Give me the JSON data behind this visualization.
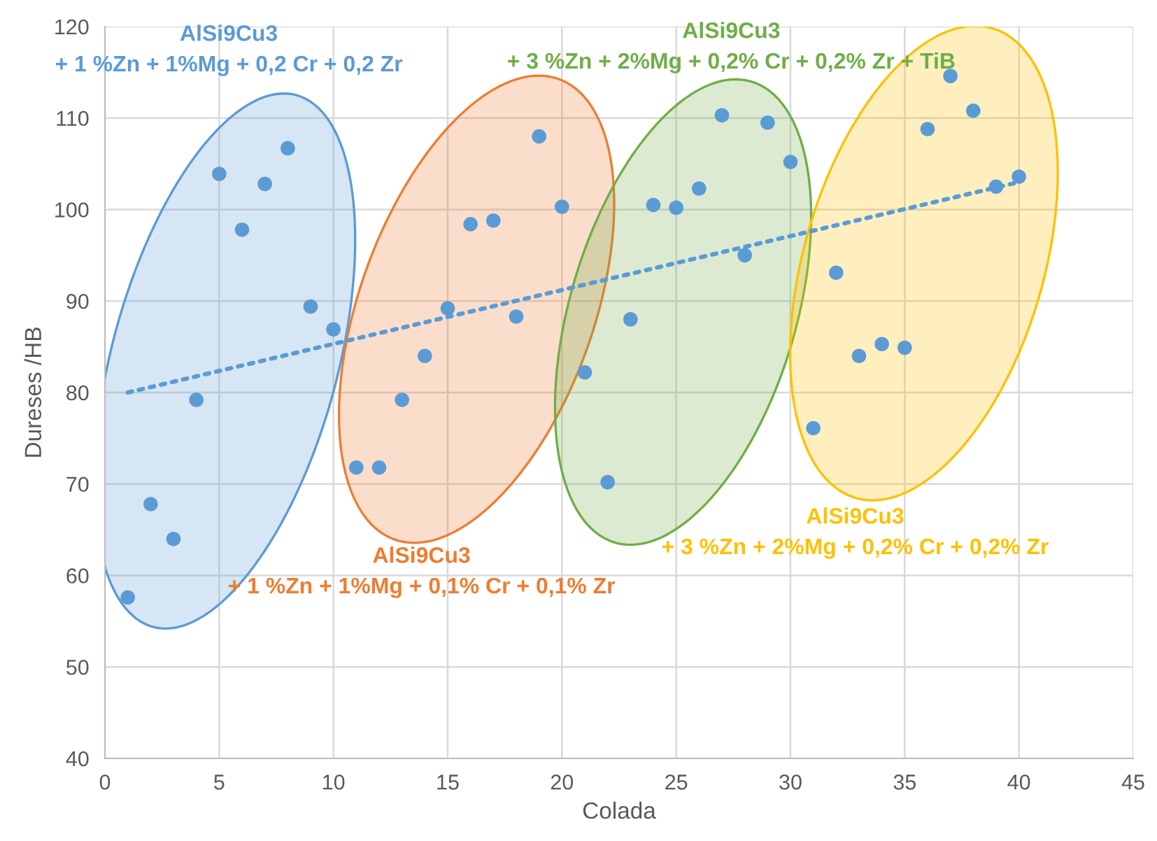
{
  "chart_data": {
    "type": "scatter",
    "xlabel": "Colada",
    "ylabel": "Dureses /HB",
    "series": [
      {
        "color": "#5b9bd5",
        "marker": "circle",
        "x": [
          1,
          2,
          3,
          4,
          5,
          6,
          7,
          8,
          9,
          10,
          11,
          12,
          13,
          14,
          15,
          16,
          17,
          18,
          19,
          20,
          21,
          22,
          23,
          24,
          25,
          26,
          27,
          28,
          29,
          30,
          31,
          32,
          33,
          34,
          35,
          36,
          37,
          38,
          39,
          40
        ],
        "values": [
          57.6,
          67.8,
          64.0,
          79.2,
          103.9,
          97.8,
          102.8,
          106.7,
          89.4,
          86.9,
          71.8,
          71.8,
          79.2,
          84.0,
          89.2,
          98.4,
          98.8,
          88.3,
          108.0,
          100.3,
          82.2,
          70.2,
          88.0,
          100.5,
          100.2,
          102.3,
          110.3,
          95.0,
          109.5,
          105.2,
          76.1,
          93.1,
          84.0,
          85.3,
          84.9,
          108.8,
          114.6,
          110.8,
          102.5,
          103.6
        ]
      },
      {
        "type": "line",
        "color": "#5b9bd5",
        "line_style": "dotted",
        "x": [
          1,
          40
        ],
        "values": [
          80,
          103
        ]
      }
    ],
    "xlim": [
      0,
      45
    ],
    "xticks": [
      0,
      5,
      10,
      15,
      20,
      25,
      30,
      35,
      40,
      45
    ],
    "ylim": [
      40,
      120
    ],
    "yticks": [
      40,
      50,
      60,
      70,
      80,
      90,
      100,
      110,
      120
    ],
    "grid": true,
    "annotations": [
      "AlSi9Cu3\n+ 1 %Zn + 1%Mg + 0,2 Cr + 0,2 Zr",
      "AlSi9Cu3\n+ 1 %Zn + 1%Mg + 0,1% Cr + 0,1% Zr",
      "AlSi9Cu3\n+ 3 %Zn + 2%Mg + 0,2% Cr + 0,2% Zr + TiB",
      "AlSi9Cu3\n+ 3 %Zn + 2%Mg + 0,2% Cr + 0,2% Zr"
    ]
  }
}
